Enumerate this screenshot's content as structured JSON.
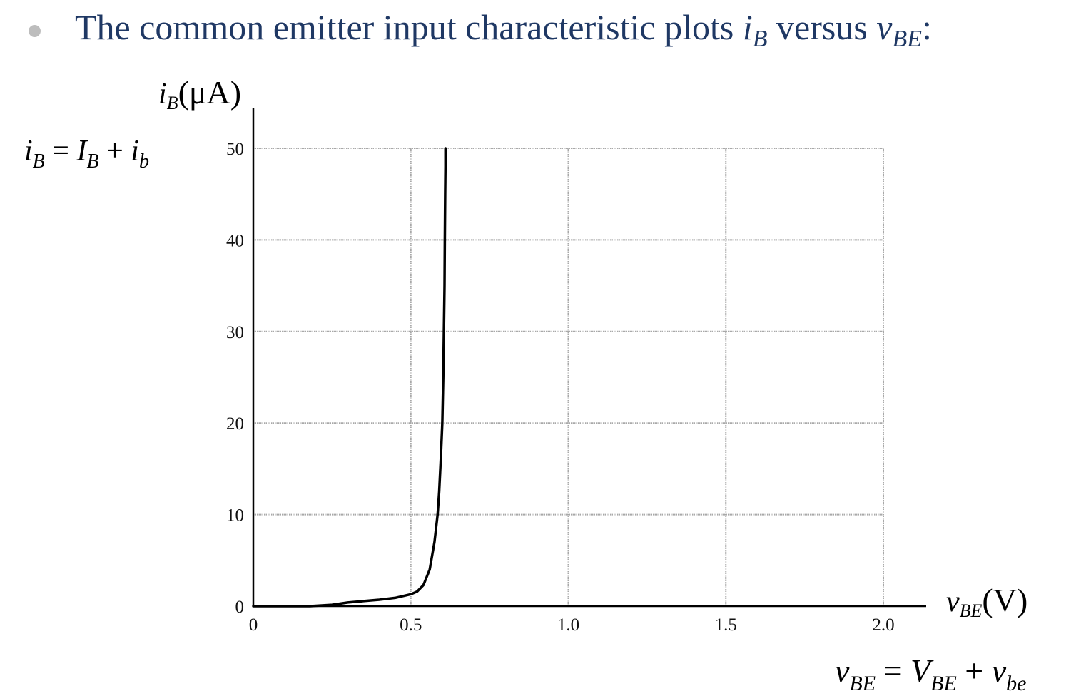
{
  "heading": {
    "text_prefix": "The common emitter input characteristic plots ",
    "var1": "i",
    "var1_sub": "B",
    "text_mid": " versus ",
    "var2": "v",
    "var2_sub": "BE",
    "text_suffix": ":"
  },
  "equations": {
    "ib": {
      "lhs": "i",
      "lhs_sub": "B",
      "op1": " = ",
      "t1": "I",
      "t1_sub": "B",
      "op2": " + ",
      "t2": "i",
      "t2_sub": "b"
    },
    "vbe": {
      "lhs": "v",
      "lhs_sub": "BE",
      "op1": " = ",
      "t1": "V",
      "t1_sub": "BE",
      "op2": " + ",
      "t2": "v",
      "t2_sub": "be"
    }
  },
  "chart_data": {
    "type": "line",
    "ylabel_var": "i",
    "ylabel_sub": "B",
    "ylabel_unit": "(μA)",
    "xlabel_var": "v",
    "xlabel_sub": "BE",
    "xlabel_unit": "(V)",
    "xlim": [
      0,
      2.0
    ],
    "ylim": [
      0,
      50
    ],
    "x_ticks": [
      0,
      0.5,
      1.0,
      1.5,
      2.0
    ],
    "x_tick_labels": [
      "0",
      "0.5",
      "1.0",
      "1.5",
      "2.0"
    ],
    "y_ticks": [
      0,
      10,
      20,
      30,
      40,
      50
    ],
    "y_tick_labels": [
      "0",
      "10",
      "20",
      "30",
      "40",
      "50"
    ],
    "grid": true,
    "series": [
      {
        "color": "#000000",
        "x": [
          0.18,
          0.25,
          0.3,
          0.35,
          0.4,
          0.45,
          0.5,
          0.52,
          0.54,
          0.56,
          0.575,
          0.585,
          0.59,
          0.595,
          0.6,
          0.603,
          0.605,
          0.607,
          0.608,
          0.609,
          0.61,
          0.61
        ],
        "y": [
          0,
          0.15,
          0.4,
          0.55,
          0.7,
          0.9,
          1.3,
          1.6,
          2.3,
          4.0,
          7.0,
          10.0,
          12.5,
          16.0,
          20.0,
          25.0,
          30.0,
          35.0,
          40.0,
          45.0,
          48.0,
          50.0
        ]
      }
    ]
  }
}
